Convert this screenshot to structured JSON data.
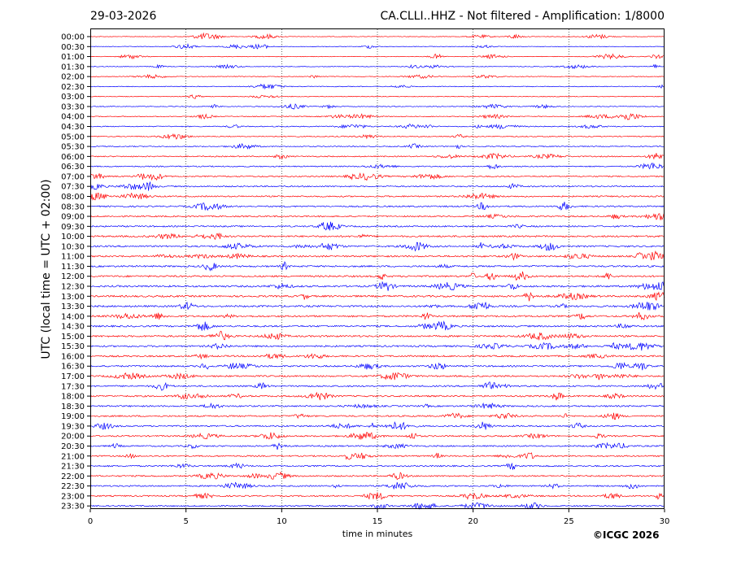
{
  "header": {
    "date": "29-03-2026",
    "channel_title": "CA.CLLI..HHZ - Not filtered - Amplification: 1/8000"
  },
  "footer": {
    "copyright": "©ICGC 2026"
  },
  "colors": {
    "trace_a": "#ff0000",
    "trace_b": "#0000ff",
    "grid": "#000000",
    "axis": "#000000"
  },
  "chart_data": {
    "type": "line",
    "title": "CA.CLLI..HHZ - Not filtered - Amplification: 1/8000",
    "xlabel": "time in minutes",
    "ylabel": "UTC (local time = UTC + 02:00)",
    "xlim": [
      0,
      30
    ],
    "x_ticks": [
      "0",
      "5",
      "10",
      "15",
      "20",
      "25",
      "30"
    ],
    "grid": "vertical dotted lines at every 5 minutes",
    "trace_colors_alternate": [
      "red",
      "blue"
    ],
    "rows": [
      "00:00",
      "00:30",
      "01:00",
      "01:30",
      "02:00",
      "02:30",
      "03:00",
      "03:30",
      "04:00",
      "04:30",
      "05:00",
      "05:30",
      "06:00",
      "06:30",
      "07:00",
      "07:30",
      "08:00",
      "08:30",
      "09:00",
      "09:30",
      "10:00",
      "10:30",
      "11:00",
      "11:30",
      "12:00",
      "12:30",
      "13:00",
      "13:30",
      "14:00",
      "14:30",
      "15:00",
      "15:30",
      "16:00",
      "16:30",
      "17:00",
      "17:30",
      "18:00",
      "18:30",
      "19:00",
      "19:30",
      "20:00",
      "20:30",
      "21:00",
      "21:30",
      "22:00",
      "22:30",
      "23:00",
      "23:30"
    ],
    "row_activity": [
      0.35,
      0.35,
      0.35,
      0.4,
      0.4,
      0.45,
      0.45,
      0.45,
      0.5,
      0.6,
      0.6,
      0.6,
      0.7,
      0.7,
      0.75,
      0.8,
      0.85,
      0.85,
      0.85,
      0.9,
      1.0,
      1.0,
      1.0,
      1.0,
      1.05,
      1.1,
      1.1,
      1.05,
      1.05,
      1.0,
      1.05,
      1.0,
      1.0,
      0.95,
      0.95,
      0.9,
      0.95,
      0.9,
      0.9,
      0.9,
      0.85,
      0.85,
      0.85,
      0.85,
      0.85,
      0.85,
      0.85,
      0.8
    ]
  }
}
